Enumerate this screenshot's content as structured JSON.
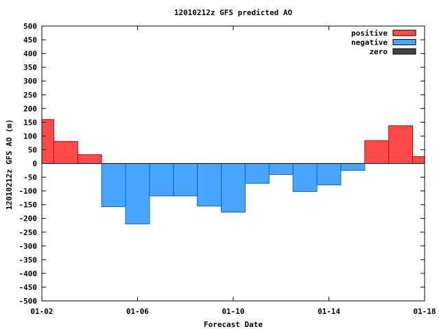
{
  "chart_data": {
    "type": "bar",
    "title": "12010212z GFS predicted AO",
    "xlabel": "Forecast Date",
    "ylabel": "12010212z GFS AO (m)",
    "ylim": [
      -500,
      500
    ],
    "y_ticks": [
      500,
      450,
      400,
      350,
      300,
      250,
      200,
      150,
      100,
      50,
      0,
      -50,
      -100,
      -150,
      -200,
      -250,
      -300,
      -350,
      -400,
      -450,
      -500
    ],
    "x_ticks": [
      {
        "label": "01-02",
        "day": 2
      },
      {
        "label": "01-06",
        "day": 6
      },
      {
        "label": "01-10",
        "day": 10
      },
      {
        "label": "01-14",
        "day": 14
      },
      {
        "label": "01-18",
        "day": 18
      }
    ],
    "xlim_days": [
      2,
      18
    ],
    "bars": [
      {
        "start": 2.0,
        "end": 2.5,
        "value": 160
      },
      {
        "start": 2.5,
        "end": 3.5,
        "value": 80
      },
      {
        "start": 3.5,
        "end": 4.5,
        "value": 32
      },
      {
        "start": 4.5,
        "end": 5.5,
        "value": -157
      },
      {
        "start": 5.5,
        "end": 6.5,
        "value": -220
      },
      {
        "start": 6.5,
        "end": 7.5,
        "value": -118
      },
      {
        "start": 7.5,
        "end": 8.5,
        "value": -118
      },
      {
        "start": 8.5,
        "end": 9.5,
        "value": -155
      },
      {
        "start": 9.5,
        "end": 10.5,
        "value": -177
      },
      {
        "start": 10.5,
        "end": 11.5,
        "value": -72
      },
      {
        "start": 11.5,
        "end": 12.5,
        "value": -40
      },
      {
        "start": 12.5,
        "end": 13.5,
        "value": -102
      },
      {
        "start": 13.5,
        "end": 14.5,
        "value": -78
      },
      {
        "start": 14.5,
        "end": 15.5,
        "value": -25
      },
      {
        "start": 15.5,
        "end": 16.5,
        "value": 83
      },
      {
        "start": 16.5,
        "end": 17.5,
        "value": 137
      },
      {
        "start": 17.5,
        "end": 18.0,
        "value": 25
      }
    ],
    "legend": {
      "placement": "top-right",
      "entries": [
        {
          "name": "positive",
          "color": "#ff4a4a"
        },
        {
          "name": "negative",
          "color": "#4aa5ff"
        },
        {
          "name": "zero",
          "color": "#444444"
        }
      ]
    },
    "colors": {
      "positive": "#ff4a4a",
      "positive_edge": "#cc0000",
      "negative": "#4aa5ff",
      "negative_edge": "#0066cc",
      "zero": "#444444",
      "zero_line": "#000000"
    },
    "grid": false
  }
}
